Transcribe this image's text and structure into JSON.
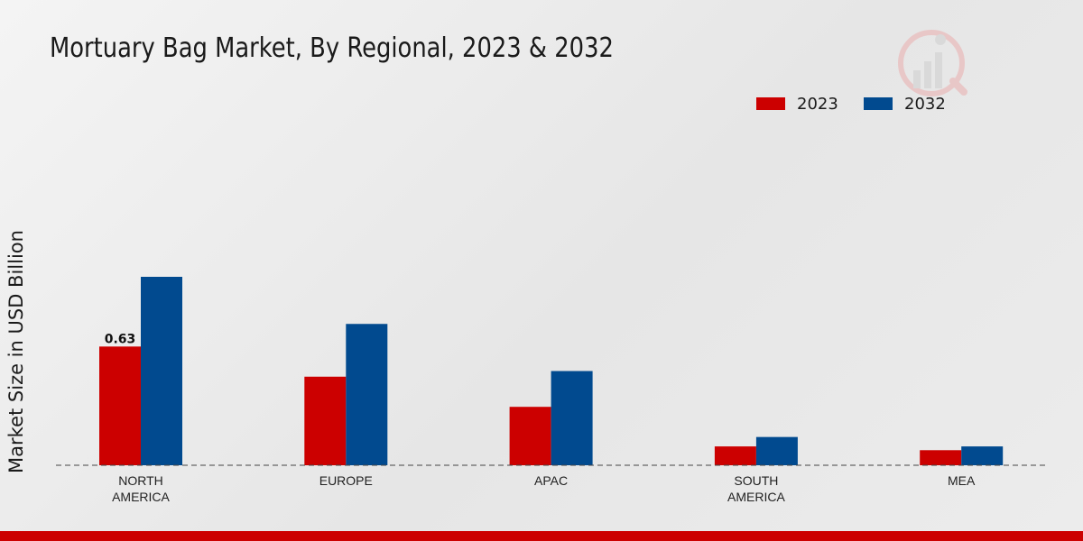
{
  "chart_data": {
    "type": "bar",
    "title": "Mortuary Bag Market, By Regional, 2023 & 2032",
    "ylabel": "Market Size in USD Billion",
    "xlabel": "",
    "categories": [
      "NORTH\nAMERICA",
      "EUROPE",
      "APAC",
      "SOUTH\nAMERICA",
      "MEA"
    ],
    "series": [
      {
        "name": "2023",
        "color": "#cc0000",
        "values": [
          0.63,
          0.47,
          0.31,
          0.1,
          0.08
        ]
      },
      {
        "name": "2032",
        "color": "#014a8f",
        "values": [
          1.0,
          0.75,
          0.5,
          0.15,
          0.1
        ]
      }
    ],
    "data_labels": [
      {
        "series": 0,
        "index": 0,
        "text": "0.63"
      }
    ],
    "ylim": [
      0,
      1.1
    ],
    "legend_position": "top-right",
    "grid": false
  },
  "colors": {
    "accent": "#cc0000",
    "secondary": "#014a8f",
    "baseline": "#444444"
  }
}
